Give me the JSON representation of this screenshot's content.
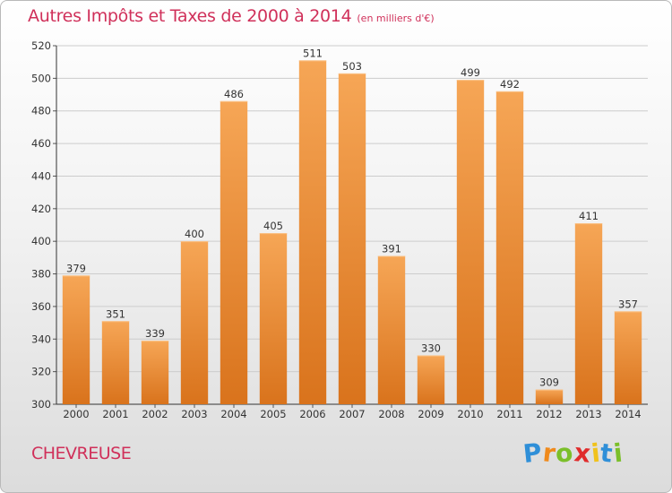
{
  "header": {
    "title": "Autres Impôts et Taxes de 2000 à 2014",
    "unit": "(en milliers d'€)"
  },
  "footer": {
    "commune": "CHEVREUSE",
    "logo": [
      {
        "ch": "P",
        "color": "#2f8fd8"
      },
      {
        "ch": "r",
        "color": "#f08a1c"
      },
      {
        "ch": "o",
        "color": "#7bbf2a"
      },
      {
        "ch": "x",
        "color": "#e02c2c"
      },
      {
        "ch": "i",
        "color": "#f0c21c"
      },
      {
        "ch": "t",
        "color": "#2f8fd8"
      },
      {
        "ch": "i",
        "color": "#7bbf2a"
      }
    ]
  },
  "chart_data": {
    "type": "bar",
    "title": "Autres Impôts et Taxes de 2000 à 2014",
    "subtitle": "(en milliers d'€)",
    "xlabel": "",
    "ylabel": "",
    "categories": [
      "2000",
      "2001",
      "2002",
      "2003",
      "2004",
      "2005",
      "2006",
      "2007",
      "2008",
      "2009",
      "2010",
      "2011",
      "2012",
      "2013",
      "2014"
    ],
    "values": [
      379,
      351,
      339,
      400,
      486,
      405,
      511,
      503,
      391,
      330,
      499,
      492,
      309,
      411,
      357
    ],
    "ylim": [
      300,
      520
    ],
    "yticks": [
      300,
      320,
      340,
      360,
      380,
      400,
      420,
      440,
      460,
      480,
      500,
      520
    ],
    "grid": true,
    "bar_color": "#f0962e",
    "grid_color": "#cccccc"
  }
}
